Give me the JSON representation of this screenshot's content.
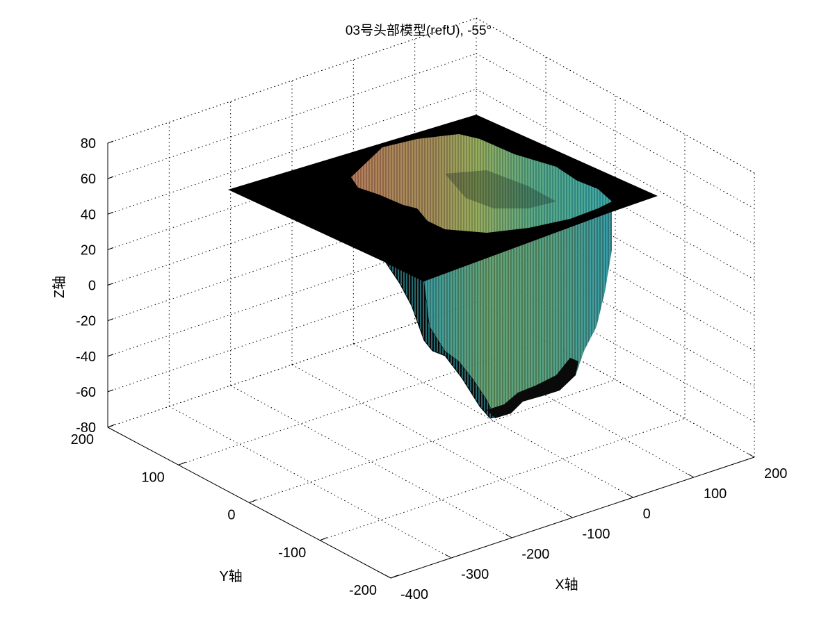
{
  "chart_data": {
    "type": "surface3d",
    "title": "03号头部模型(refU), -55°",
    "xlabel": "X轴",
    "ylabel": "Y轴",
    "zlabel": "Z轴",
    "x_ticks": [
      -400,
      -300,
      -200,
      -100,
      0,
      100,
      200
    ],
    "y_ticks": [
      -200,
      -100,
      0,
      100,
      200
    ],
    "z_ticks": [
      -80,
      -60,
      -40,
      -20,
      0,
      20,
      40,
      60,
      80
    ],
    "xlim": [
      -400,
      200
    ],
    "ylim": [
      -200,
      200
    ],
    "zlim": [
      -80,
      80
    ],
    "grid": true,
    "plane_color": "#000000",
    "surface_colors": [
      "#e38a6a",
      "#b9c86e",
      "#9edc73",
      "#5fc8a8",
      "#35c6d6"
    ]
  }
}
